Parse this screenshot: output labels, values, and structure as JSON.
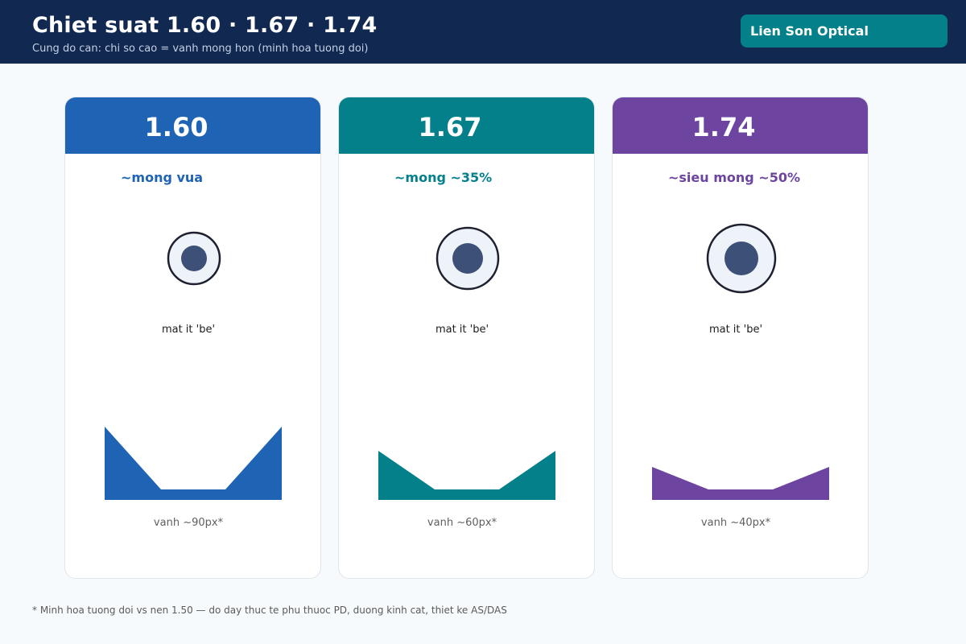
{
  "header": {
    "title": "Chiet suat 1.60 · 1.67 · 1.74",
    "subtitle": "Cung do can: chi so cao = vanh mong hon (minh hoa tuong doi)",
    "brand": "Lien Son Optical"
  },
  "colors": {
    "header_bg": "#112851",
    "brand_bg": "#04808a",
    "eye_ring": "#1e2030",
    "eye_fill": "#eef3fa",
    "pupil": "#3d5078"
  },
  "lenses": [
    {
      "index": "1.60",
      "thin_label": "~mong vua",
      "eye_note": "mat it 'be'",
      "edge_caption": "vanh ~90px*",
      "color": "#1f64b4"
    },
    {
      "index": "1.67",
      "thin_label": "~mong ~35%",
      "eye_note": "mat it 'be'",
      "edge_caption": "vanh ~60px*",
      "color": "#04808a"
    },
    {
      "index": "1.74",
      "thin_label": "~sieu mong ~50%",
      "eye_note": "mat it 'be'",
      "edge_caption": "vanh ~40px*",
      "color": "#6d45a0"
    }
  ],
  "footnote": "* Minh hoa tuong doi vs nen 1.50 — do day thuc te phu thuoc PD, duong kinh cat, thiet ke AS/DAS"
}
